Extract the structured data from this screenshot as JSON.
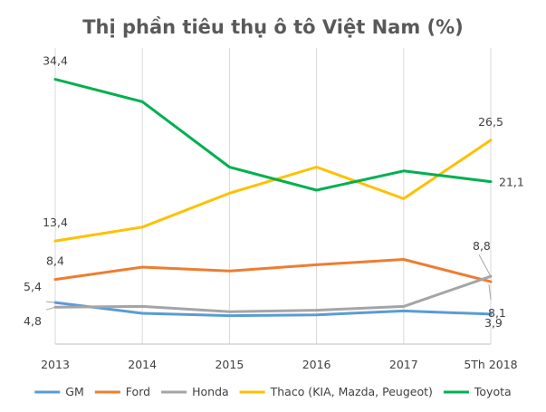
{
  "chart_data": {
    "type": "line",
    "title": "Thị phần tiêu thụ ô tô Việt Nam (%)",
    "xlabel": "",
    "ylabel": "",
    "categories": [
      "2013",
      "2014",
      "2015",
      "2016",
      "2017",
      "5Th 2018"
    ],
    "ylim": [
      0,
      38
    ],
    "grid": "vertical",
    "legend_position": "bottom",
    "series": [
      {
        "name": "GM",
        "color": "#5B9BD5",
        "values": [
          5.4,
          4.0,
          3.7,
          3.8,
          4.3,
          3.9
        ]
      },
      {
        "name": "Ford",
        "color": "#ED7D31",
        "values": [
          8.4,
          10.0,
          9.5,
          10.3,
          11.0,
          8.1
        ]
      },
      {
        "name": "Honda",
        "color": "#A5A5A5",
        "values": [
          4.8,
          4.9,
          4.2,
          4.4,
          4.9,
          8.8
        ]
      },
      {
        "name": "Thaco (KIA, Mazda, Peugeot)",
        "color": "#FFC000",
        "values": [
          13.4,
          15.2,
          19.6,
          23.0,
          18.9,
          26.5
        ]
      },
      {
        "name": "Toyota",
        "color": "#00B050",
        "values": [
          34.4,
          31.5,
          23.0,
          20.0,
          22.5,
          21.1
        ]
      }
    ],
    "data_labels": [
      {
        "series": "Toyota",
        "index": 0,
        "text": "34,4"
      },
      {
        "series": "Thaco (KIA, Mazda, Peugeot)",
        "index": 0,
        "text": "13,4"
      },
      {
        "series": "Ford",
        "index": 0,
        "text": "8,4"
      },
      {
        "series": "GM",
        "index": 0,
        "text": "5,4"
      },
      {
        "series": "Honda",
        "index": 0,
        "text": "4,8"
      },
      {
        "series": "Thaco (KIA, Mazda, Peugeot)",
        "index": 5,
        "text": "26,5"
      },
      {
        "series": "Toyota",
        "index": 5,
        "text": "21,1"
      },
      {
        "series": "Honda",
        "index": 5,
        "text": "8,8"
      },
      {
        "series": "Ford",
        "index": 5,
        "text": "8,1"
      },
      {
        "series": "GM",
        "index": 5,
        "text": "3,9"
      }
    ]
  }
}
